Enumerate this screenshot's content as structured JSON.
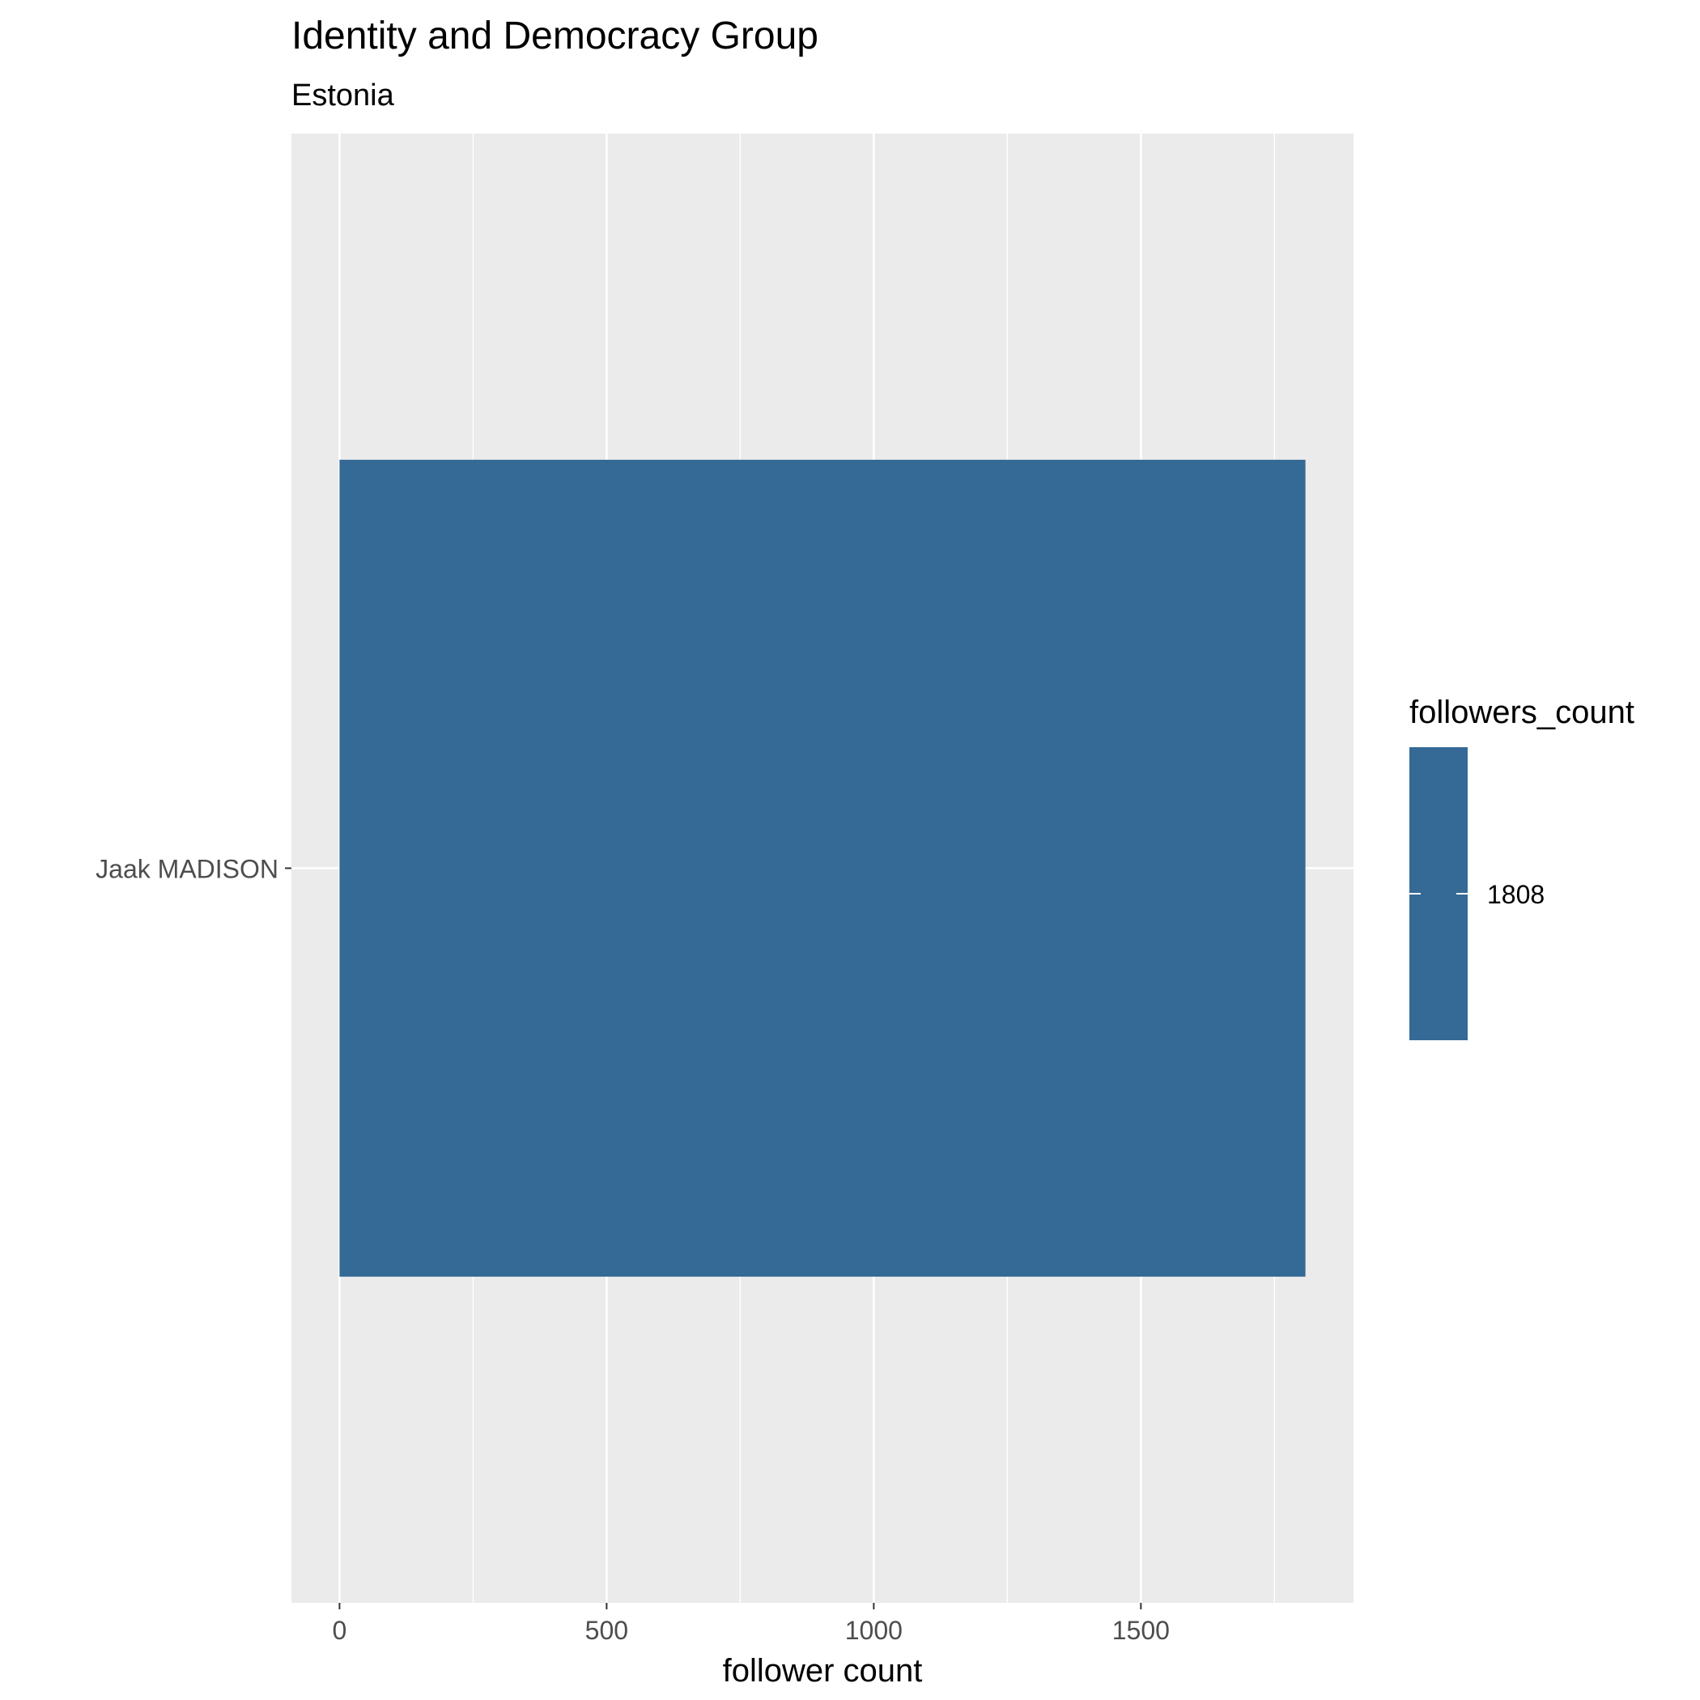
{
  "chart_data": {
    "type": "bar",
    "orientation": "horizontal",
    "title": "Identity and Democracy Group",
    "subtitle": "Estonia",
    "xlabel": "follower count",
    "ylabel": "",
    "categories": [
      "Jaak MADISON"
    ],
    "values": [
      1808
    ],
    "xlim": [
      -90,
      1898
    ],
    "x_ticks": [
      0,
      500,
      1000,
      1500
    ],
    "x_tick_labels": [
      "0",
      "500",
      "1000",
      "1500"
    ],
    "grid": true,
    "legend": {
      "title": "followers_count",
      "labels": [
        "1808"
      ],
      "placement": "right"
    },
    "colors": {
      "bar": "#356a96",
      "panel_background": "#ebebeb",
      "grid_line": "#ffffff"
    }
  }
}
